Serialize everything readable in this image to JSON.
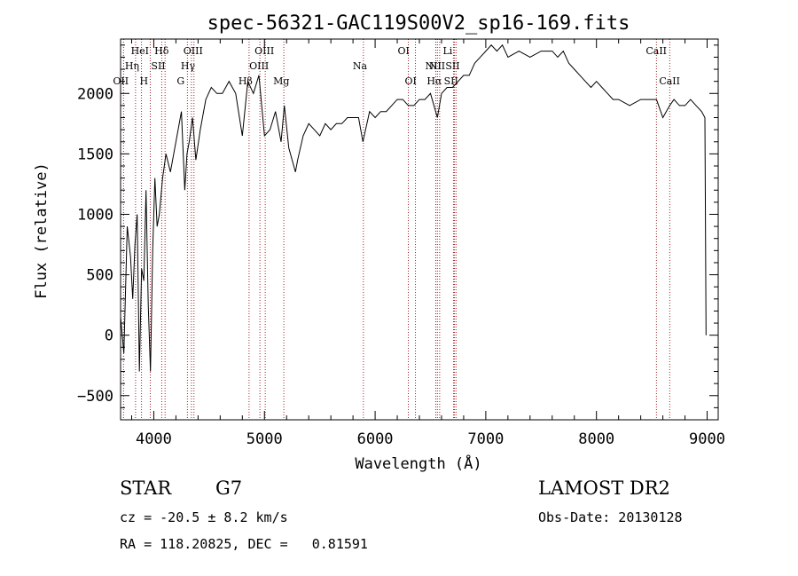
{
  "chart_data": {
    "type": "line",
    "title": "spec-56321-GAC119S00V2_sp16-169.fits",
    "xlabel": "Wavelength (Å)",
    "ylabel": "Flux (relative)",
    "xlim": [
      3700,
      9100
    ],
    "ylim": [
      -700,
      2450
    ],
    "x_ticks": [
      4000,
      5000,
      6000,
      7000,
      8000,
      9000
    ],
    "y_ticks": [
      -500,
      0,
      500,
      1000,
      1500,
      2000
    ],
    "series": [
      {
        "name": "flux",
        "x": [
          3700,
          3730,
          3760,
          3790,
          3810,
          3830,
          3850,
          3870,
          3890,
          3910,
          3930,
          3950,
          3970,
          3990,
          4010,
          4030,
          4050,
          4080,
          4110,
          4150,
          4200,
          4250,
          4280,
          4300,
          4320,
          4350,
          4380,
          4420,
          4470,
          4520,
          4570,
          4620,
          4680,
          4740,
          4800,
          4850,
          4900,
          4950,
          5000,
          5050,
          5100,
          5150,
          5180,
          5220,
          5280,
          5300,
          5350,
          5400,
          5450,
          5500,
          5550,
          5600,
          5650,
          5700,
          5750,
          5800,
          5850,
          5890,
          5950,
          6000,
          6050,
          6100,
          6150,
          6200,
          6250,
          6300,
          6350,
          6400,
          6450,
          6500,
          6563,
          6600,
          6650,
          6700,
          6750,
          6800,
          6850,
          6900,
          6950,
          7000,
          7050,
          7100,
          7150,
          7200,
          7300,
          7400,
          7500,
          7600,
          7650,
          7700,
          7750,
          7800,
          7850,
          7900,
          7950,
          8000,
          8050,
          8100,
          8150,
          8200,
          8300,
          8400,
          8500,
          8542,
          8600,
          8662,
          8700,
          8750,
          8800,
          8850,
          8900,
          8950,
          8980,
          8990
        ],
        "y": [
          150,
          -150,
          900,
          650,
          300,
          750,
          1000,
          -300,
          550,
          450,
          1200,
          250,
          -300,
          700,
          1300,
          900,
          1000,
          1300,
          1500,
          1350,
          1600,
          1850,
          1200,
          1500,
          1600,
          1800,
          1450,
          1700,
          1950,
          2050,
          2000,
          2000,
          2100,
          2000,
          1650,
          2100,
          2000,
          2150,
          1650,
          1700,
          1850,
          1600,
          1900,
          1550,
          1350,
          1450,
          1650,
          1750,
          1700,
          1650,
          1750,
          1700,
          1750,
          1750,
          1800,
          1800,
          1800,
          1600,
          1850,
          1800,
          1850,
          1850,
          1900,
          1950,
          1950,
          1900,
          1900,
          1950,
          1950,
          2000,
          1800,
          2000,
          2050,
          2050,
          2100,
          2150,
          2150,
          2250,
          2300,
          2350,
          2400,
          2350,
          2400,
          2300,
          2350,
          2300,
          2350,
          2350,
          2300,
          2350,
          2250,
          2200,
          2150,
          2100,
          2050,
          2100,
          2050,
          2000,
          1950,
          1950,
          1900,
          1950,
          1950,
          1950,
          1800,
          1900,
          1950,
          1900,
          1900,
          1950,
          1900,
          1850,
          1800,
          0
        ]
      }
    ],
    "lines": [
      {
        "label": "OII",
        "wave": 3727,
        "row": 3
      },
      {
        "label": "Hη",
        "wave": 3835,
        "row": 2
      },
      {
        "label": "HeI",
        "wave": 3889,
        "row": 1
      },
      {
        "label": "H",
        "wave": 3968,
        "row": 3
      },
      {
        "label": "SII",
        "wave": 4072,
        "row": 2
      },
      {
        "label": "Hδ",
        "wave": 4102,
        "row": 1
      },
      {
        "label": "G",
        "wave": 4304,
        "row": 3
      },
      {
        "label": "Hγ",
        "wave": 4340,
        "row": 2
      },
      {
        "label": "OIII",
        "wave": 4363,
        "row": 1
      },
      {
        "label": "Hβ",
        "wave": 4861,
        "row": 3
      },
      {
        "label": "OIII",
        "wave": 4959,
        "row": 2
      },
      {
        "label": "OIII",
        "wave": 5007,
        "row": 1
      },
      {
        "label": "Mg",
        "wave": 5175,
        "row": 3
      },
      {
        "label": "Na",
        "wave": 5894,
        "row": 2
      },
      {
        "label": "OI",
        "wave": 6300,
        "row": 1
      },
      {
        "label": "OI",
        "wave": 6364,
        "row": 3
      },
      {
        "label": "NII",
        "wave": 6548,
        "row": 2
      },
      {
        "label": "Hα",
        "wave": 6563,
        "row": 3
      },
      {
        "label": "NII",
        "wave": 6583,
        "row": 2
      },
      {
        "label": "Li",
        "wave": 6708,
        "row": 1
      },
      {
        "label": "SII",
        "wave": 6717,
        "row": 3
      },
      {
        "label": "SII",
        "wave": 6731,
        "row": 2
      },
      {
        "label": "CaII",
        "wave": 8542,
        "row": 1
      },
      {
        "label": "CaII",
        "wave": 8662,
        "row": 3
      }
    ]
  },
  "info": {
    "object_class": "STAR",
    "subclass": "G7",
    "survey": "LAMOST DR2",
    "redshift": "cz = -20.5 ± 8.2 km/s",
    "obs_date": "Obs-Date: 20130128",
    "coords": "RA = 118.20825, DEC =   0.81591"
  },
  "colors": {
    "line_marker": "#a02020",
    "spectrum": "#000000"
  }
}
